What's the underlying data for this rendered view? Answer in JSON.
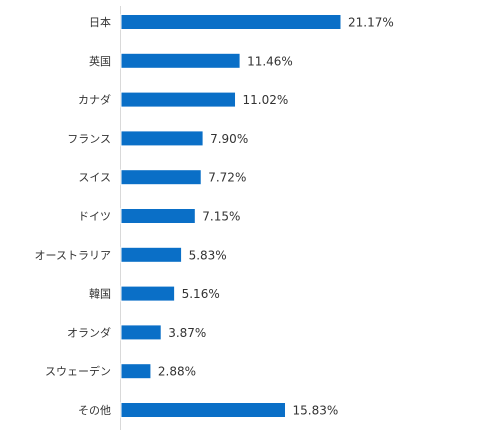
{
  "chart_data": {
    "type": "bar",
    "orientation": "horizontal",
    "categories": [
      "日本",
      "英国",
      "カナダ",
      "フランス",
      "スイス",
      "ドイツ",
      "オーストラリア",
      "韓国",
      "オランダ",
      "スウェーデン",
      "その他"
    ],
    "values": [
      21.17,
      11.46,
      11.02,
      7.9,
      7.72,
      7.15,
      5.83,
      5.16,
      3.87,
      2.88,
      15.83
    ],
    "value_labels": [
      "21.17%",
      "11.46%",
      "11.02%",
      "7.90%",
      "7.72%",
      "7.15%",
      "5.83%",
      "5.16%",
      "3.87%",
      "2.88%",
      "15.83%"
    ],
    "bar_color": "#0a6fc7",
    "xlim": [
      0,
      30
    ],
    "grid": false,
    "legend": "none"
  }
}
